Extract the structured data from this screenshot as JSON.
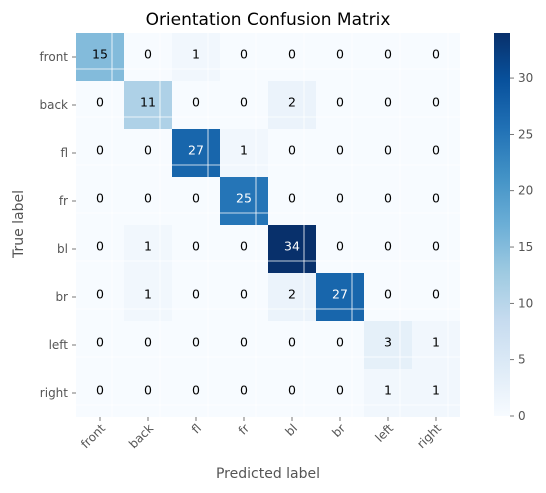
{
  "chart_data": {
    "type": "heatmap",
    "title": "Orientation Confusion Matrix",
    "xlabel": "Predicted label",
    "ylabel": "True label",
    "x_categories": [
      "front",
      "back",
      "fl",
      "fr",
      "bl",
      "br",
      "left",
      "right"
    ],
    "y_categories": [
      "front",
      "back",
      "fl",
      "fr",
      "bl",
      "br",
      "left",
      "right"
    ],
    "values": [
      [
        15,
        0,
        1,
        0,
        0,
        0,
        0,
        0
      ],
      [
        0,
        11,
        0,
        0,
        2,
        0,
        0,
        0
      ],
      [
        0,
        0,
        27,
        1,
        0,
        0,
        0,
        0
      ],
      [
        0,
        0,
        0,
        25,
        0,
        0,
        0,
        0
      ],
      [
        0,
        1,
        0,
        0,
        34,
        0,
        0,
        0
      ],
      [
        0,
        1,
        0,
        0,
        2,
        27,
        0,
        0
      ],
      [
        0,
        0,
        0,
        0,
        0,
        0,
        3,
        1
      ],
      [
        0,
        0,
        0,
        0,
        0,
        0,
        1,
        1
      ]
    ],
    "colormap": "Blues",
    "color_range": [
      0,
      34
    ],
    "colorbar_ticks": [
      0,
      5,
      10,
      15,
      20,
      25,
      30
    ],
    "text_color_light": "#ffffff",
    "text_color_dark": "#000000",
    "grid": true
  }
}
